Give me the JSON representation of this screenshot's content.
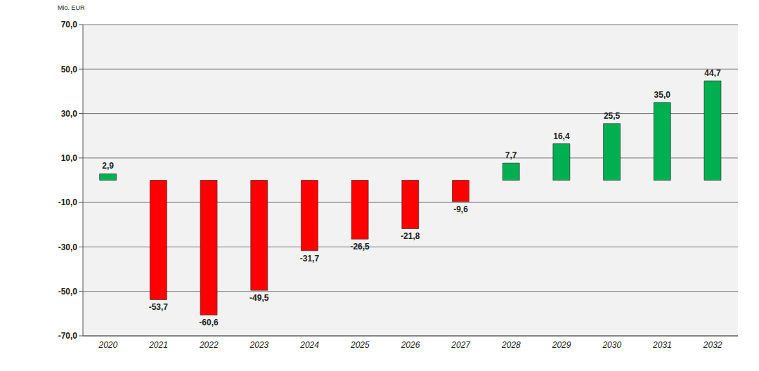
{
  "chart_data": {
    "type": "bar",
    "ylabel": "Mio. EUR",
    "categories": [
      "2020",
      "2021",
      "2022",
      "2023",
      "2024",
      "2025",
      "2026",
      "2027",
      "2028",
      "2029",
      "2030",
      "2031",
      "2032"
    ],
    "values": [
      2.9,
      -53.7,
      -60.6,
      -49.5,
      -31.7,
      -26.5,
      -21.8,
      -9.6,
      7.7,
      16.4,
      25.5,
      35.0,
      44.7
    ],
    "value_labels": [
      "2,9",
      "-53,7",
      "-60,6",
      "-49,5",
      "-31,7",
      "-26,5",
      "-21,8",
      "-9,6",
      "7,7",
      "16,4",
      "25,5",
      "35,0",
      "44,7"
    ],
    "colors": [
      "#00b050",
      "#ff0000",
      "#ff0000",
      "#ff0000",
      "#ff0000",
      "#ff0000",
      "#ff0000",
      "#ff0000",
      "#00b050",
      "#00b050",
      "#00b050",
      "#00b050",
      "#00b050"
    ],
    "ylim": [
      -70,
      70
    ],
    "yticks": [
      {
        "value": 70,
        "label": "70,0"
      },
      {
        "value": 50,
        "label": "50,0"
      },
      {
        "value": 30,
        "label": "30,0"
      },
      {
        "value": 10,
        "label": "10,0"
      },
      {
        "value": -10,
        "label": "-10,0"
      },
      {
        "value": -30,
        "label": "-30,0"
      },
      {
        "value": -50,
        "label": "-50,0"
      },
      {
        "value": -70,
        "label": "-70,0"
      }
    ],
    "grid": true,
    "data_labels": true
  }
}
